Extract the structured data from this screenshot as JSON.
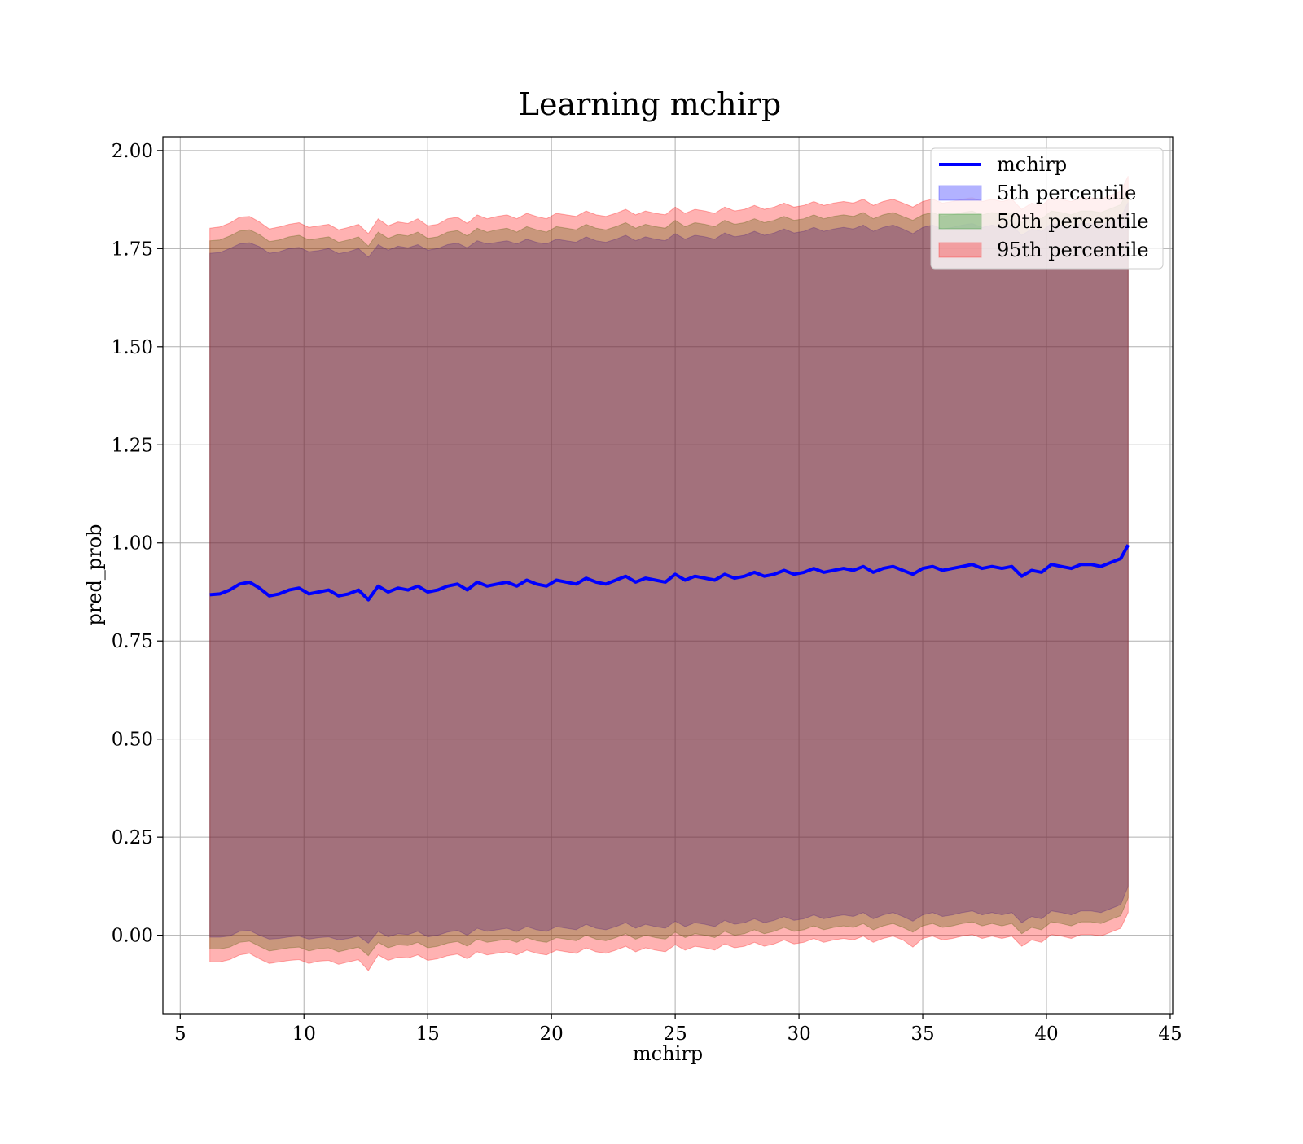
{
  "chart_data": {
    "type": "area",
    "title": "Learning mchirp",
    "xlabel": "mchirp",
    "ylabel": "pred_prob",
    "xlim": [
      4.3,
      45.1
    ],
    "ylim": [
      -0.2,
      2.035
    ],
    "grid": true,
    "xticks": [
      5,
      10,
      15,
      20,
      25,
      30,
      35,
      40,
      45
    ],
    "yticks": [
      0.0,
      0.25,
      0.5,
      0.75,
      1.0,
      1.25,
      1.5,
      1.75,
      2.0
    ],
    "xtick_labels": [
      "5",
      "10",
      "15",
      "20",
      "25",
      "30",
      "35",
      "40",
      "45"
    ],
    "ytick_labels": [
      "0.00",
      "0.25",
      "0.50",
      "0.75",
      "1.00",
      "1.25",
      "1.50",
      "1.75",
      "2.00"
    ],
    "legend_position": "top-right",
    "x": [
      6.2,
      6.6,
      7.0,
      7.4,
      7.8,
      8.2,
      8.6,
      9.0,
      9.4,
      9.8,
      10.2,
      10.6,
      11.0,
      11.4,
      11.8,
      12.2,
      12.6,
      13.0,
      13.4,
      13.8,
      14.2,
      14.6,
      15.0,
      15.4,
      15.8,
      16.2,
      16.6,
      17.0,
      17.4,
      17.8,
      18.2,
      18.6,
      19.0,
      19.4,
      19.8,
      20.2,
      20.6,
      21.0,
      21.4,
      21.8,
      22.2,
      22.6,
      23.0,
      23.4,
      23.8,
      24.2,
      24.6,
      25.0,
      25.4,
      25.8,
      26.2,
      26.6,
      27.0,
      27.4,
      27.8,
      28.2,
      28.6,
      29.0,
      29.4,
      29.8,
      30.2,
      30.6,
      31.0,
      31.4,
      31.8,
      32.2,
      32.6,
      33.0,
      33.4,
      33.8,
      34.2,
      34.6,
      35.0,
      35.4,
      35.8,
      36.2,
      36.6,
      37.0,
      37.4,
      37.8,
      38.2,
      38.6,
      39.0,
      39.4,
      39.8,
      40.2,
      40.6,
      41.0,
      41.4,
      41.8,
      42.2,
      42.6,
      43.0,
      43.3
    ],
    "series": [
      {
        "name": "mchirp",
        "kind": "line",
        "color": "#0000ff",
        "values": [
          0.868,
          0.87,
          0.88,
          0.895,
          0.9,
          0.885,
          0.865,
          0.87,
          0.88,
          0.885,
          0.87,
          0.875,
          0.88,
          0.865,
          0.87,
          0.88,
          0.855,
          0.89,
          0.875,
          0.885,
          0.88,
          0.89,
          0.875,
          0.88,
          0.89,
          0.895,
          0.88,
          0.9,
          0.89,
          0.895,
          0.9,
          0.89,
          0.905,
          0.895,
          0.89,
          0.905,
          0.9,
          0.895,
          0.91,
          0.9,
          0.895,
          0.905,
          0.915,
          0.9,
          0.91,
          0.905,
          0.9,
          0.92,
          0.905,
          0.915,
          0.91,
          0.905,
          0.92,
          0.91,
          0.915,
          0.925,
          0.915,
          0.92,
          0.93,
          0.92,
          0.925,
          0.935,
          0.925,
          0.93,
          0.935,
          0.93,
          0.94,
          0.925,
          0.935,
          0.94,
          0.93,
          0.92,
          0.935,
          0.94,
          0.93,
          0.935,
          0.94,
          0.945,
          0.935,
          0.94,
          0.935,
          0.94,
          0.915,
          0.93,
          0.925,
          0.945,
          0.94,
          0.935,
          0.945,
          0.945,
          0.94,
          0.95,
          0.96,
          0.995
        ]
      },
      {
        "name": "5th percentile",
        "kind": "band",
        "color": "#0000ff",
        "lower": [
          -0.005,
          -0.005,
          -0.002,
          0.01,
          0.012,
          0.0,
          -0.01,
          -0.008,
          -0.004,
          -0.002,
          -0.01,
          -0.006,
          -0.004,
          -0.012,
          -0.008,
          -0.002,
          -0.02,
          0.01,
          -0.004,
          0.004,
          0.002,
          0.01,
          -0.004,
          0.0,
          0.008,
          0.012,
          0.0,
          0.018,
          0.01,
          0.014,
          0.018,
          0.01,
          0.022,
          0.014,
          0.01,
          0.022,
          0.018,
          0.014,
          0.028,
          0.018,
          0.014,
          0.022,
          0.032,
          0.018,
          0.028,
          0.022,
          0.018,
          0.036,
          0.022,
          0.032,
          0.028,
          0.022,
          0.038,
          0.028,
          0.032,
          0.042,
          0.032,
          0.038,
          0.048,
          0.038,
          0.042,
          0.052,
          0.042,
          0.048,
          0.052,
          0.048,
          0.058,
          0.042,
          0.052,
          0.058,
          0.048,
          0.036,
          0.052,
          0.058,
          0.048,
          0.052,
          0.058,
          0.062,
          0.052,
          0.058,
          0.052,
          0.058,
          0.032,
          0.048,
          0.042,
          0.062,
          0.058,
          0.052,
          0.062,
          0.062,
          0.058,
          0.068,
          0.078,
          0.125
        ],
        "upper": [
          1.738,
          1.74,
          1.75,
          1.762,
          1.765,
          1.755,
          1.738,
          1.742,
          1.75,
          1.753,
          1.742,
          1.745,
          1.75,
          1.737,
          1.742,
          1.75,
          1.728,
          1.76,
          1.746,
          1.756,
          1.752,
          1.76,
          1.746,
          1.75,
          1.76,
          1.764,
          1.752,
          1.77,
          1.762,
          1.766,
          1.77,
          1.762,
          1.774,
          1.766,
          1.762,
          1.774,
          1.77,
          1.766,
          1.78,
          1.77,
          1.766,
          1.774,
          1.784,
          1.77,
          1.78,
          1.774,
          1.77,
          1.788,
          1.774,
          1.784,
          1.78,
          1.774,
          1.79,
          1.78,
          1.784,
          1.794,
          1.784,
          1.79,
          1.8,
          1.79,
          1.794,
          1.804,
          1.794,
          1.8,
          1.804,
          1.8,
          1.81,
          1.794,
          1.804,
          1.81,
          1.8,
          1.788,
          1.804,
          1.81,
          1.8,
          1.804,
          1.81,
          1.814,
          1.804,
          1.81,
          1.804,
          1.81,
          1.784,
          1.8,
          1.794,
          1.814,
          1.81,
          1.804,
          1.814,
          1.814,
          1.81,
          1.82,
          1.83,
          1.868
        ]
      },
      {
        "name": "50th percentile",
        "kind": "band",
        "color": "#008000",
        "lower": [
          -0.035,
          -0.035,
          -0.03,
          -0.018,
          -0.015,
          -0.028,
          -0.04,
          -0.036,
          -0.032,
          -0.03,
          -0.04,
          -0.034,
          -0.032,
          -0.042,
          -0.036,
          -0.03,
          -0.052,
          -0.018,
          -0.032,
          -0.024,
          -0.026,
          -0.018,
          -0.032,
          -0.028,
          -0.02,
          -0.016,
          -0.028,
          -0.01,
          -0.018,
          -0.014,
          -0.01,
          -0.018,
          -0.006,
          -0.014,
          -0.018,
          -0.006,
          -0.01,
          -0.014,
          0.0,
          -0.01,
          -0.014,
          -0.006,
          0.004,
          -0.01,
          0.0,
          -0.006,
          -0.01,
          0.008,
          -0.006,
          0.004,
          0.0,
          -0.006,
          0.01,
          0.0,
          0.004,
          0.014,
          0.004,
          0.01,
          0.02,
          0.01,
          0.014,
          0.024,
          0.014,
          0.02,
          0.024,
          0.02,
          0.03,
          0.014,
          0.024,
          0.03,
          0.02,
          0.008,
          0.024,
          0.03,
          0.02,
          0.024,
          0.03,
          0.034,
          0.024,
          0.03,
          0.024,
          0.03,
          0.004,
          0.02,
          0.014,
          0.034,
          0.03,
          0.024,
          0.034,
          0.034,
          0.03,
          0.04,
          0.05,
          0.095
        ],
        "upper": [
          1.77,
          1.772,
          1.782,
          1.795,
          1.798,
          1.786,
          1.768,
          1.772,
          1.78,
          1.784,
          1.772,
          1.776,
          1.78,
          1.766,
          1.772,
          1.78,
          1.756,
          1.792,
          1.776,
          1.786,
          1.782,
          1.792,
          1.776,
          1.78,
          1.792,
          1.796,
          1.782,
          1.802,
          1.792,
          1.798,
          1.802,
          1.792,
          1.806,
          1.798,
          1.792,
          1.806,
          1.802,
          1.798,
          1.812,
          1.802,
          1.798,
          1.806,
          1.816,
          1.802,
          1.812,
          1.806,
          1.802,
          1.822,
          1.806,
          1.816,
          1.812,
          1.806,
          1.822,
          1.812,
          1.816,
          1.826,
          1.816,
          1.822,
          1.832,
          1.822,
          1.826,
          1.836,
          1.826,
          1.832,
          1.836,
          1.832,
          1.842,
          1.826,
          1.836,
          1.842,
          1.832,
          1.822,
          1.836,
          1.842,
          1.832,
          1.836,
          1.842,
          1.846,
          1.836,
          1.842,
          1.836,
          1.842,
          1.816,
          1.832,
          1.826,
          1.846,
          1.842,
          1.836,
          1.846,
          1.846,
          1.842,
          1.852,
          1.862,
          1.9
        ]
      },
      {
        "name": "95th percentile",
        "kind": "band",
        "color": "#ff0000",
        "lower": [
          -0.068,
          -0.068,
          -0.062,
          -0.05,
          -0.046,
          -0.06,
          -0.072,
          -0.068,
          -0.064,
          -0.062,
          -0.072,
          -0.066,
          -0.064,
          -0.074,
          -0.068,
          -0.062,
          -0.09,
          -0.05,
          -0.064,
          -0.056,
          -0.058,
          -0.05,
          -0.064,
          -0.06,
          -0.052,
          -0.048,
          -0.06,
          -0.042,
          -0.05,
          -0.046,
          -0.042,
          -0.05,
          -0.038,
          -0.046,
          -0.05,
          -0.038,
          -0.042,
          -0.046,
          -0.032,
          -0.042,
          -0.046,
          -0.038,
          -0.028,
          -0.042,
          -0.032,
          -0.038,
          -0.042,
          -0.024,
          -0.038,
          -0.028,
          -0.032,
          -0.038,
          -0.022,
          -0.032,
          -0.028,
          -0.018,
          -0.028,
          -0.022,
          -0.012,
          -0.022,
          -0.018,
          -0.008,
          -0.018,
          -0.012,
          -0.008,
          -0.012,
          -0.002,
          -0.018,
          -0.008,
          -0.002,
          -0.012,
          -0.03,
          -0.008,
          -0.002,
          -0.012,
          -0.008,
          -0.002,
          0.002,
          -0.008,
          -0.002,
          -0.008,
          -0.002,
          -0.028,
          -0.012,
          -0.018,
          0.002,
          -0.002,
          -0.008,
          0.002,
          0.002,
          -0.002,
          0.008,
          0.018,
          0.058
        ],
        "upper": [
          1.802,
          1.805,
          1.815,
          1.83,
          1.832,
          1.818,
          1.8,
          1.805,
          1.812,
          1.816,
          1.804,
          1.808,
          1.812,
          1.798,
          1.804,
          1.812,
          1.788,
          1.826,
          1.808,
          1.818,
          1.814,
          1.826,
          1.808,
          1.812,
          1.826,
          1.83,
          1.814,
          1.836,
          1.826,
          1.832,
          1.836,
          1.826,
          1.84,
          1.832,
          1.826,
          1.84,
          1.836,
          1.832,
          1.846,
          1.836,
          1.832,
          1.84,
          1.85,
          1.836,
          1.846,
          1.84,
          1.836,
          1.856,
          1.84,
          1.85,
          1.846,
          1.84,
          1.856,
          1.846,
          1.85,
          1.86,
          1.85,
          1.856,
          1.866,
          1.856,
          1.86,
          1.87,
          1.86,
          1.866,
          1.87,
          1.866,
          1.876,
          1.86,
          1.87,
          1.876,
          1.866,
          1.856,
          1.87,
          1.876,
          1.866,
          1.87,
          1.876,
          1.88,
          1.87,
          1.876,
          1.87,
          1.876,
          1.85,
          1.866,
          1.86,
          1.88,
          1.876,
          1.87,
          1.88,
          1.88,
          1.876,
          1.886,
          1.896,
          1.935
        ]
      }
    ]
  }
}
